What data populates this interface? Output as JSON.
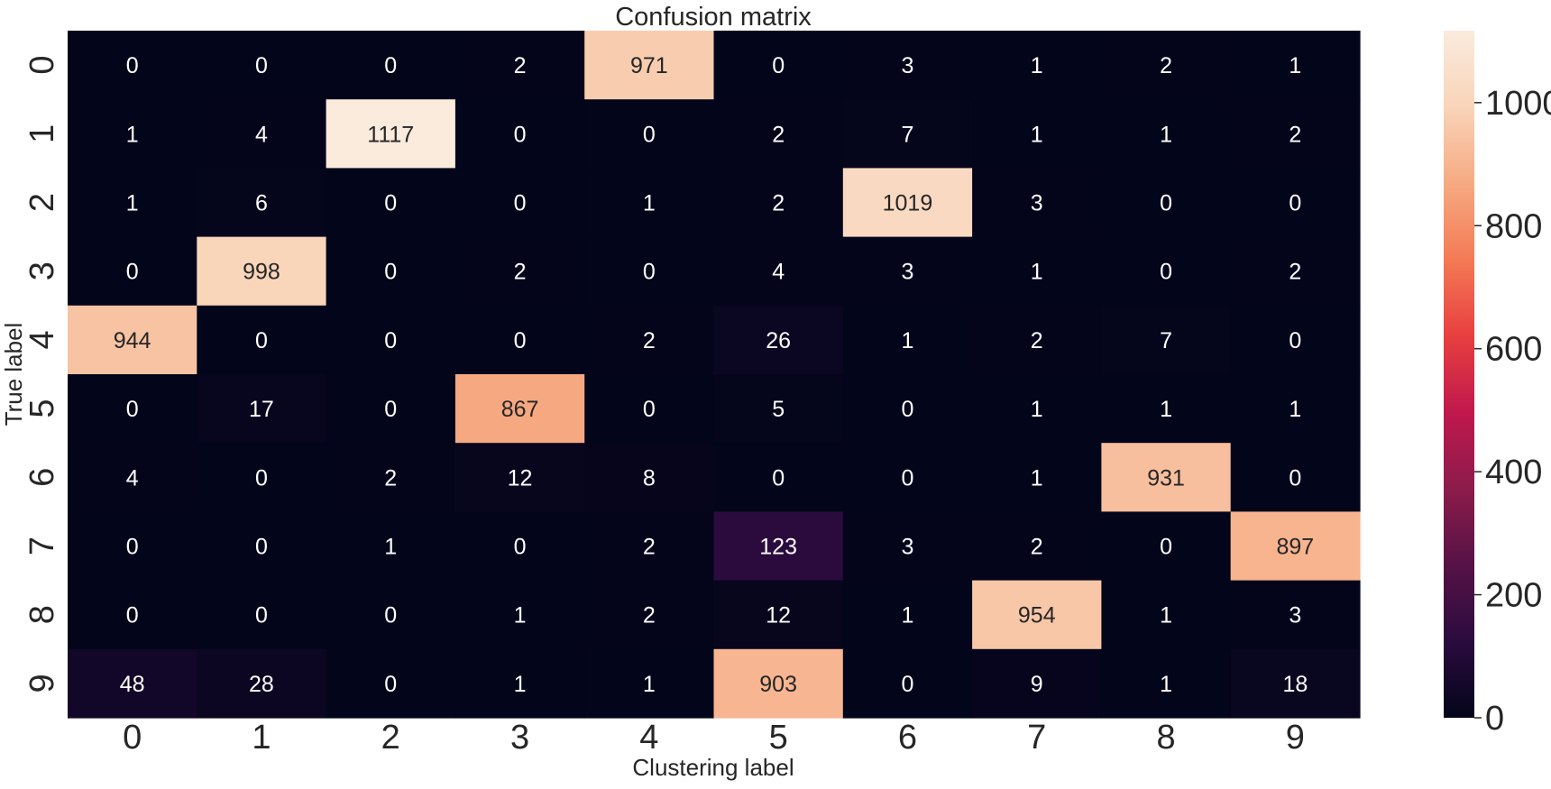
{
  "chart_data": {
    "type": "heatmap",
    "title": "Confusion matrix",
    "xlabel": "Clustering label",
    "ylabel": "True label",
    "x_categories": [
      "0",
      "1",
      "2",
      "3",
      "4",
      "5",
      "6",
      "7",
      "8",
      "9"
    ],
    "y_categories": [
      "0",
      "1",
      "2",
      "3",
      "4",
      "5",
      "6",
      "7",
      "8",
      "9"
    ],
    "values": [
      [
        0,
        0,
        0,
        2,
        971,
        0,
        3,
        1,
        2,
        1
      ],
      [
        1,
        4,
        1117,
        0,
        0,
        2,
        7,
        1,
        1,
        2
      ],
      [
        1,
        6,
        0,
        0,
        1,
        2,
        1019,
        3,
        0,
        0
      ],
      [
        0,
        998,
        0,
        2,
        0,
        4,
        3,
        1,
        0,
        2
      ],
      [
        944,
        0,
        0,
        0,
        2,
        26,
        1,
        2,
        7,
        0
      ],
      [
        0,
        17,
        0,
        867,
        0,
        5,
        0,
        1,
        1,
        1
      ],
      [
        4,
        0,
        2,
        12,
        8,
        0,
        0,
        1,
        931,
        0
      ],
      [
        0,
        0,
        1,
        0,
        2,
        123,
        3,
        2,
        0,
        897
      ],
      [
        0,
        0,
        0,
        1,
        2,
        12,
        1,
        954,
        1,
        3
      ],
      [
        48,
        28,
        0,
        1,
        1,
        903,
        0,
        9,
        1,
        18
      ]
    ],
    "colorbar": {
      "range": [
        0,
        1117
      ],
      "ticks": [
        "0",
        "200",
        "400",
        "600",
        "800",
        "1000"
      ],
      "tick_values": [
        0,
        200,
        400,
        600,
        800,
        1000
      ],
      "colormap": "rocket",
      "colormap_stops": [
        "#03051a",
        "#2b0b3e",
        "#561246",
        "#8c1c4b",
        "#c0184d",
        "#e83f3f",
        "#f47a55",
        "#f6aa82",
        "#f9d4b9",
        "#faebdd"
      ]
    },
    "grid": false
  }
}
